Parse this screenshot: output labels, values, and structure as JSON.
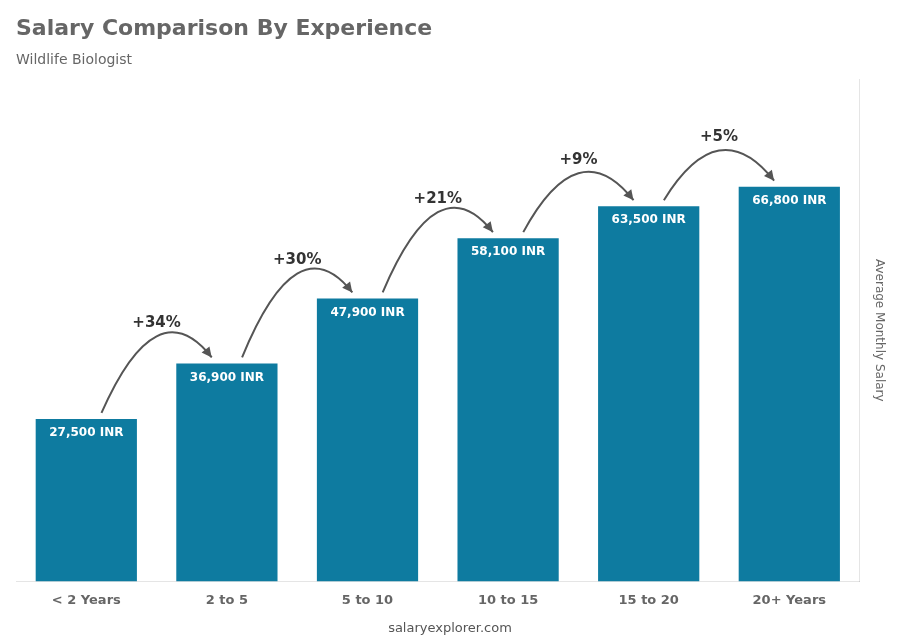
{
  "chart_data": {
    "type": "bar",
    "title": "Salary Comparison By Experience",
    "subtitle": "Wildlife Biologist",
    "ylabel": "Average Monthly Salary",
    "categories": [
      "< 2 Years",
      "2 to 5",
      "5 to 10",
      "10 to 15",
      "15 to 20",
      "20+ Years"
    ],
    "values": [
      27500,
      36900,
      47900,
      58100,
      63500,
      66800
    ],
    "value_labels": [
      "27,500 INR",
      "36,900 INR",
      "47,900 INR",
      "58,100 INR",
      "63,500 INR",
      "66,800 INR"
    ],
    "data_labels": true,
    "annotations": [
      "+34%",
      "+30%",
      "+21%",
      "+9%",
      "+5%"
    ],
    "footer": "salaryexplorer.com",
    "color": "#0e7ba0",
    "ylim": [
      0,
      85000
    ],
    "tick_labels": "x",
    "grid": false
  }
}
